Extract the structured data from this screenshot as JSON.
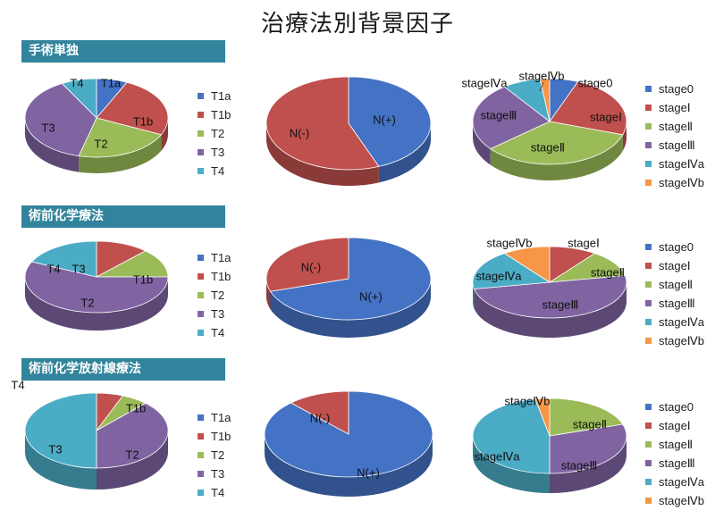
{
  "title": "治療法別背景因子",
  "colors": {
    "blue": "#4472C4",
    "red": "#C0504D",
    "green": "#9BBB59",
    "purple": "#8064A2",
    "teal": "#4BACC6",
    "orange": "#F79646",
    "header_bg": "#31849B"
  },
  "sections": [
    {
      "label": "手術単独"
    },
    {
      "label": "術前化学療法"
    },
    {
      "label": "術前化学放射線療法"
    }
  ],
  "legends": {
    "t": [
      "T1a",
      "T1b",
      "T2",
      "T3",
      "T4"
    ],
    "stage": [
      "stage0",
      "stageⅠ",
      "stageⅡ",
      "stageⅢ",
      "stageⅣa",
      "stageⅣb"
    ]
  },
  "chart_data": [
    {
      "type": "pie",
      "section": "手術単独",
      "categories": [
        "T1a",
        "T1b",
        "T2",
        "T3",
        "T4"
      ],
      "values": [
        7,
        25,
        22,
        38,
        8
      ],
      "colors": [
        "#4472C4",
        "#C0504D",
        "#9BBB59",
        "#8064A2",
        "#4BACC6"
      ],
      "labels": [
        "T1a",
        "T1b",
        "T2",
        "T3",
        "T4"
      ]
    },
    {
      "type": "pie",
      "section": "手術単独",
      "categories": [
        "N(+)",
        "N(-)"
      ],
      "values": [
        44,
        56
      ],
      "colors": [
        "#4472C4",
        "#C0504D"
      ],
      "labels": [
        "N(+)",
        "N(-)"
      ]
    },
    {
      "type": "pie",
      "section": "手術単独",
      "categories": [
        "stage0",
        "stageⅠ",
        "stageⅡ",
        "stageⅢ",
        "stageⅣa",
        "stageⅣb"
      ],
      "values": [
        6,
        24,
        34,
        26,
        8,
        2
      ],
      "colors": [
        "#4472C4",
        "#C0504D",
        "#9BBB59",
        "#8064A2",
        "#4BACC6",
        "#F79646"
      ],
      "labels": [
        "stage0",
        "stageⅠ",
        "stageⅡ",
        "stageⅢ",
        "stageⅣa",
        "stageⅣb"
      ]
    },
    {
      "type": "pie",
      "section": "術前化学療法",
      "categories": [
        "T1a",
        "T1b",
        "T2",
        "T3",
        "T4"
      ],
      "values": [
        0,
        12,
        13,
        57,
        18
      ],
      "colors": [
        "#4472C4",
        "#C0504D",
        "#9BBB59",
        "#8064A2",
        "#4BACC6"
      ],
      "labels": [
        "",
        "T1b",
        "T2",
        "T3",
        "T4"
      ]
    },
    {
      "type": "pie",
      "section": "術前化学療法",
      "categories": [
        "N(+)",
        "N(-)"
      ],
      "values": [
        70,
        30
      ],
      "colors": [
        "#4472C4",
        "#C0504D"
      ],
      "labels": [
        "N(+)",
        "N(-)"
      ]
    },
    {
      "type": "pie",
      "section": "術前化学療法",
      "categories": [
        "stage0",
        "stageⅠ",
        "stageⅡ",
        "stageⅢ",
        "stageⅣa",
        "stageⅣb"
      ],
      "values": [
        0,
        10,
        12,
        50,
        18,
        10
      ],
      "colors": [
        "#4472C4",
        "#C0504D",
        "#9BBB59",
        "#8064A2",
        "#4BACC6",
        "#F79646"
      ],
      "labels": [
        "",
        "stageⅠ",
        "stageⅡ",
        "stageⅢ",
        "stageⅣa",
        "stageⅣb"
      ]
    },
    {
      "type": "pie",
      "section": "術前化学放射線療法",
      "categories": [
        "T1a",
        "T1b",
        "T2",
        "T3",
        "T4"
      ],
      "values": [
        0,
        6,
        6,
        38,
        50
      ],
      "colors": [
        "#4472C4",
        "#C0504D",
        "#9BBB59",
        "#8064A2",
        "#4BACC6"
      ],
      "labels": [
        "",
        "T1b",
        "T2",
        "T3",
        "T4"
      ]
    },
    {
      "type": "pie",
      "section": "術前化学放射線療法",
      "categories": [
        "N(+)",
        "N(-)"
      ],
      "values": [
        88,
        12
      ],
      "colors": [
        "#4472C4",
        "#C0504D"
      ],
      "labels": [
        "N(+)",
        "N(-)"
      ]
    },
    {
      "type": "pie",
      "section": "術前化学放射線療法",
      "categories": [
        "stage0",
        "stageⅠ",
        "stageⅡ",
        "stageⅢ",
        "stageⅣa",
        "stageⅣb"
      ],
      "values": [
        0,
        0,
        20,
        30,
        47,
        3
      ],
      "colors": [
        "#4472C4",
        "#C0504D",
        "#9BBB59",
        "#8064A2",
        "#4BACC6",
        "#F79646"
      ],
      "labels": [
        "",
        "",
        "stageⅡ",
        "stageⅢ",
        "stageⅣa",
        "stageⅣb"
      ]
    }
  ]
}
